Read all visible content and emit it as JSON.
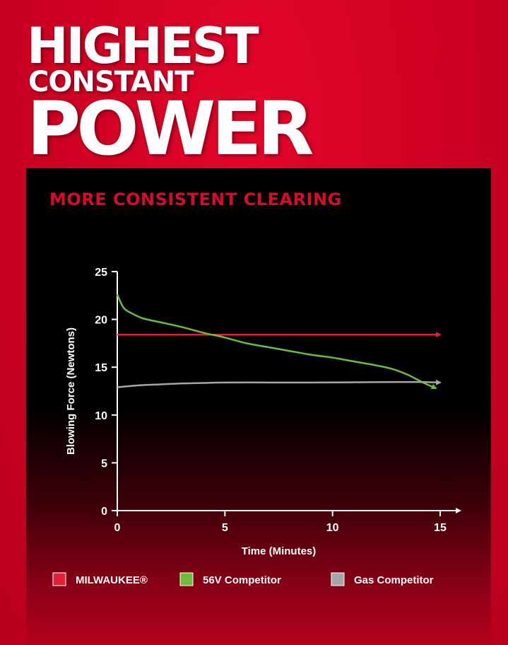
{
  "headline": {
    "line1": "HIGHEST",
    "line2": "CONSTANT",
    "line3": "POWER"
  },
  "colors": {
    "background": "#cc0022",
    "panel": "#000000",
    "accent_red": "#d90a2c"
  },
  "chart_data": {
    "type": "line",
    "title": "MORE CONSISTENT CLEARING",
    "xlabel": "Time (Minutes)",
    "ylabel": "Blowing Force (Newtons)",
    "xlim": [
      0,
      15
    ],
    "ylim": [
      0,
      25
    ],
    "x_ticks": [
      "0",
      "5",
      "10",
      "15"
    ],
    "y_ticks": [
      "0",
      "5",
      "10",
      "15",
      "20",
      "25"
    ],
    "grid": false,
    "legend_position": "bottom",
    "series": [
      {
        "name": "MILWAUKEE®",
        "color": "#e0213a",
        "x": [
          0,
          15
        ],
        "y": [
          18.4,
          18.4
        ]
      },
      {
        "name": "56V Competitor",
        "color": "#6fbb3b",
        "x": [
          0,
          0.3,
          0.7,
          1.2,
          2,
          3,
          4,
          5,
          6,
          7,
          8,
          9,
          10,
          11,
          12,
          12.8,
          13.5,
          14.2,
          14.8
        ],
        "y": [
          22.6,
          21.2,
          20.6,
          20.1,
          19.7,
          19.2,
          18.6,
          18.1,
          17.5,
          17.1,
          16.7,
          16.3,
          16.0,
          15.6,
          15.2,
          14.8,
          14.2,
          13.4,
          12.8
        ]
      },
      {
        "name": "Gas Competitor",
        "color": "#a6a6a6",
        "x": [
          0,
          1,
          2,
          3,
          4,
          5,
          7,
          9,
          11,
          13,
          14,
          15
        ],
        "y": [
          12.9,
          13.1,
          13.2,
          13.3,
          13.35,
          13.4,
          13.4,
          13.4,
          13.42,
          13.45,
          13.45,
          13.4
        ]
      }
    ]
  }
}
